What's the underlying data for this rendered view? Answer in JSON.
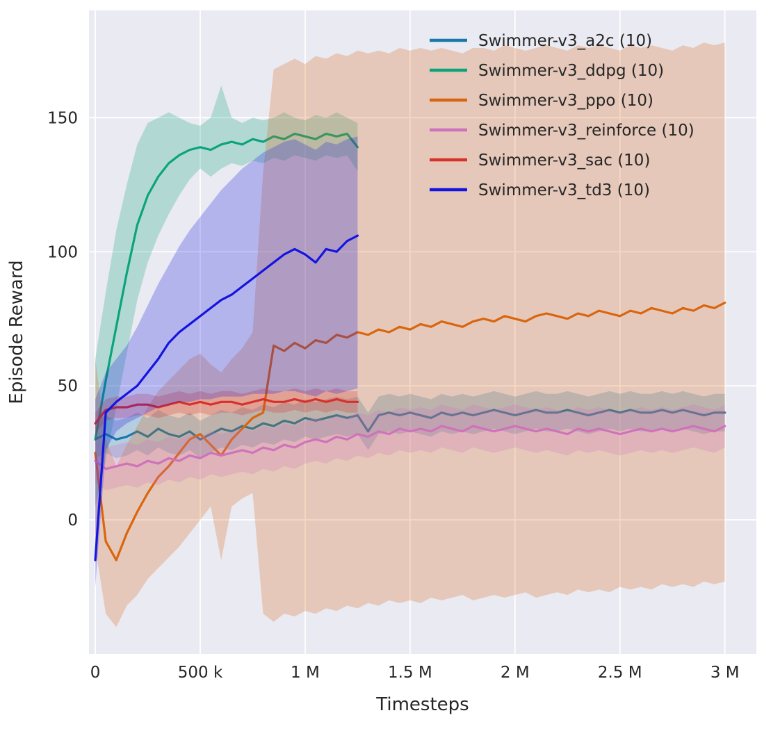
{
  "figure": {
    "background": "#ffffff"
  },
  "chart_data": {
    "type": "line",
    "title": "",
    "xlabel": "Timesteps",
    "ylabel": "Episode Reward",
    "xlim": [
      -30000,
      3150000
    ],
    "ylim": [
      -50,
      190
    ],
    "plot_background": "#eaeaf2",
    "grid": true,
    "grid_color": "#ffffff",
    "text_color": "#262626",
    "band_opacity": 0.25,
    "legend_position": "upper-right",
    "legend_frame": false,
    "xticks": {
      "values": [
        0,
        500000,
        1000000,
        1500000,
        2000000,
        2500000,
        3000000
      ],
      "labels": [
        "0",
        "500 k",
        "1 M",
        "1.5 M",
        "2 M",
        "2.5 M",
        "3 M"
      ]
    },
    "yticks": {
      "values": [
        0,
        50,
        100,
        150
      ],
      "labels": [
        "0",
        "50",
        "100",
        "150"
      ]
    },
    "series": [
      {
        "key": "a2c",
        "name": "Swimmer-v3_a2c (10)",
        "color": "#1779ab",
        "x_start": 0,
        "x_step": 50000,
        "band_halfwidth": 7,
        "y": [
          30,
          32,
          30,
          31,
          33,
          31,
          34,
          32,
          31,
          33,
          30,
          32,
          34,
          33,
          35,
          34,
          36,
          35,
          37,
          36,
          38,
          37,
          38,
          39,
          38,
          39,
          33,
          39,
          40,
          39,
          40,
          39,
          38,
          40,
          39,
          40,
          39,
          40,
          41,
          40,
          39,
          40,
          41,
          40,
          40,
          41,
          40,
          39,
          40,
          41,
          40,
          41,
          40,
          40,
          41,
          40,
          41,
          40,
          39,
          40,
          40
        ]
      },
      {
        "key": "ddpg",
        "name": "Swimmer-v3_ddpg (10)",
        "color": "#0aa47c",
        "x_start": 0,
        "x_step": 50000,
        "y": [
          30,
          52,
          72,
          92,
          110,
          121,
          128,
          133,
          136,
          138,
          139,
          138,
          140,
          141,
          140,
          142,
          141,
          143,
          142,
          144,
          143,
          142,
          144,
          143,
          144,
          139
        ],
        "hi": [
          60,
          85,
          108,
          125,
          140,
          148,
          150,
          152,
          150,
          148,
          147,
          150,
          162,
          150,
          148,
          150,
          149,
          150,
          152,
          150,
          149,
          151,
          150,
          152,
          150,
          148
        ],
        "lo": [
          5,
          22,
          42,
          62,
          82,
          96,
          106,
          114,
          121,
          127,
          131,
          128,
          131,
          133,
          132,
          134,
          133,
          135,
          134,
          136,
          135,
          134,
          136,
          135,
          136,
          130
        ]
      },
      {
        "key": "ppo",
        "name": "Swimmer-v3_ppo (10)",
        "color": "#d9650f",
        "x_start": 0,
        "x_step": 50000,
        "y": [
          25,
          -8,
          -15,
          -5,
          3,
          10,
          16,
          20,
          25,
          30,
          32,
          28,
          24,
          30,
          34,
          38,
          40,
          65,
          63,
          66,
          64,
          67,
          66,
          69,
          68,
          70,
          69,
          71,
          70,
          72,
          71,
          73,
          72,
          74,
          73,
          72,
          74,
          75,
          74,
          76,
          75,
          74,
          76,
          77,
          76,
          75,
          77,
          76,
          78,
          77,
          76,
          78,
          77,
          79,
          78,
          77,
          79,
          78,
          80,
          79,
          81
        ],
        "hi": [
          60,
          30,
          20,
          28,
          35,
          42,
          48,
          52,
          56,
          60,
          62,
          58,
          55,
          60,
          64,
          70,
          130,
          168,
          170,
          172,
          170,
          173,
          172,
          174,
          173,
          175,
          174,
          175,
          174,
          176,
          175,
          176,
          175,
          176,
          175,
          174,
          176,
          176,
          175,
          177,
          176,
          175,
          176,
          177,
          176,
          175,
          177,
          176,
          177,
          176,
          175,
          177,
          176,
          177,
          176,
          175,
          177,
          176,
          178,
          177,
          178
        ],
        "lo": [
          -10,
          -35,
          -40,
          -32,
          -28,
          -22,
          -18,
          -14,
          -10,
          -5,
          0,
          5,
          -15,
          5,
          8,
          10,
          -35,
          -38,
          -35,
          -36,
          -34,
          -35,
          -33,
          -34,
          -32,
          -33,
          -31,
          -32,
          -30,
          -31,
          -30,
          -31,
          -29,
          -30,
          -29,
          -28,
          -30,
          -29,
          -28,
          -29,
          -28,
          -27,
          -29,
          -28,
          -27,
          -28,
          -26,
          -27,
          -26,
          -27,
          -25,
          -26,
          -25,
          -26,
          -24,
          -25,
          -24,
          -25,
          -23,
          -24,
          -23
        ]
      },
      {
        "key": "reinforce",
        "name": "Swimmer-v3_reinforce (10)",
        "color": "#cf72bb",
        "x_start": 0,
        "x_step": 50000,
        "band_halfwidth": 8,
        "y": [
          22,
          19,
          20,
          21,
          20,
          22,
          21,
          23,
          22,
          24,
          23,
          25,
          24,
          25,
          26,
          25,
          27,
          26,
          28,
          27,
          29,
          30,
          29,
          31,
          30,
          32,
          31,
          33,
          32,
          34,
          33,
          34,
          33,
          35,
          34,
          33,
          35,
          34,
          33,
          34,
          35,
          34,
          33,
          34,
          33,
          32,
          34,
          33,
          34,
          33,
          32,
          33,
          34,
          33,
          34,
          33,
          34,
          35,
          34,
          33,
          35
        ]
      },
      {
        "key": "sac",
        "name": "Swimmer-v3_sac (10)",
        "color": "#d8312c",
        "x_start": 0,
        "x_step": 50000,
        "band_halfwidth": 4,
        "y": [
          36,
          41,
          42,
          42,
          43,
          43,
          42,
          43,
          44,
          43,
          44,
          43,
          44,
          44,
          43,
          44,
          45,
          44,
          44,
          45,
          44,
          45,
          44,
          45,
          44,
          44
        ]
      },
      {
        "key": "td3",
        "name": "Swimmer-v3_td3 (10)",
        "color": "#1414e0",
        "x_start": 0,
        "x_step": 50000,
        "y": [
          -15,
          40,
          44,
          47,
          50,
          55,
          60,
          66,
          70,
          73,
          76,
          79,
          82,
          84,
          87,
          90,
          93,
          96,
          99,
          101,
          99,
          96,
          101,
          100,
          104,
          106
        ],
        "hi": [
          45,
          55,
          60,
          65,
          72,
          80,
          88,
          95,
          102,
          108,
          113,
          118,
          123,
          127,
          131,
          134,
          137,
          139,
          141,
          142,
          140,
          138,
          141,
          140,
          142,
          143
        ],
        "lo": [
          -25,
          26,
          33,
          36,
          38,
          40,
          42,
          43,
          44,
          44,
          45,
          45,
          46,
          46,
          46,
          47,
          47,
          47,
          48,
          48,
          47,
          46,
          48,
          47,
          48,
          49
        ]
      }
    ]
  }
}
